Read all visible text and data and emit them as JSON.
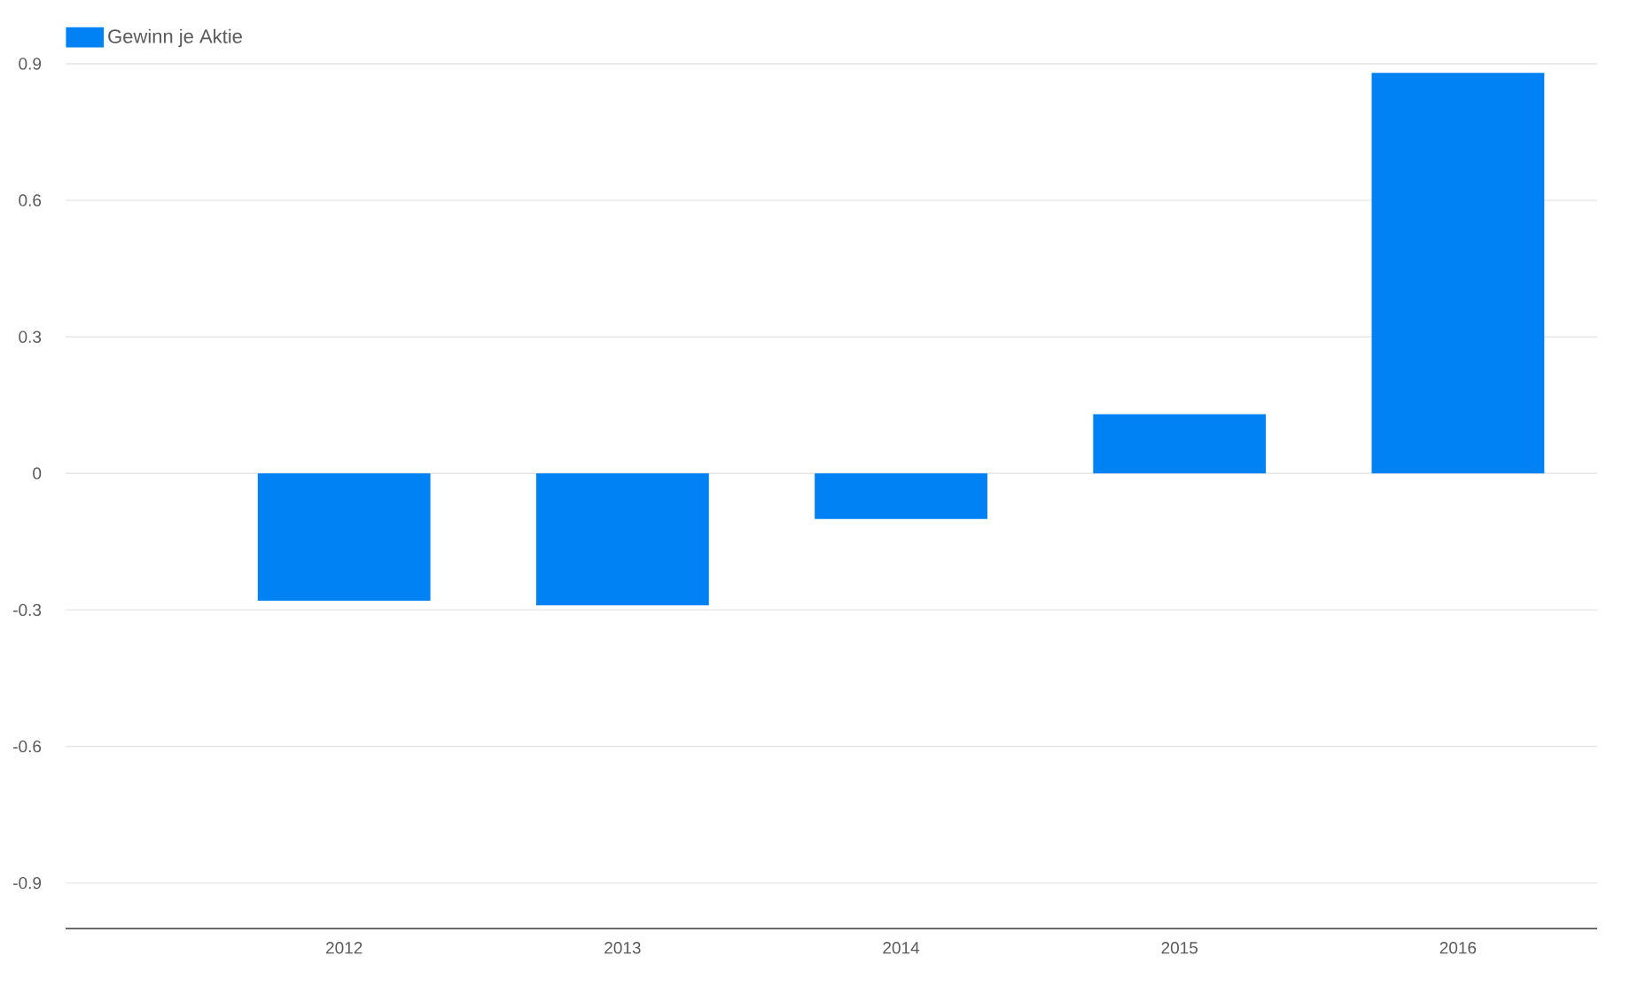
{
  "chart_data": {
    "type": "bar",
    "categories": [
      "2012",
      "2013",
      "2014",
      "2015",
      "2016"
    ],
    "series": [
      {
        "name": "Gewinn je Aktie",
        "color": "#0082f4",
        "values": [
          -0.28,
          -0.29,
          -0.1,
          0.13,
          0.88
        ]
      }
    ],
    "ylim": [
      -1.0,
      0.9
    ],
    "yticks": [
      -0.9,
      -0.6,
      -0.3,
      0,
      0.3,
      0.6,
      0.9
    ],
    "grid": "y",
    "legend": "top left"
  }
}
